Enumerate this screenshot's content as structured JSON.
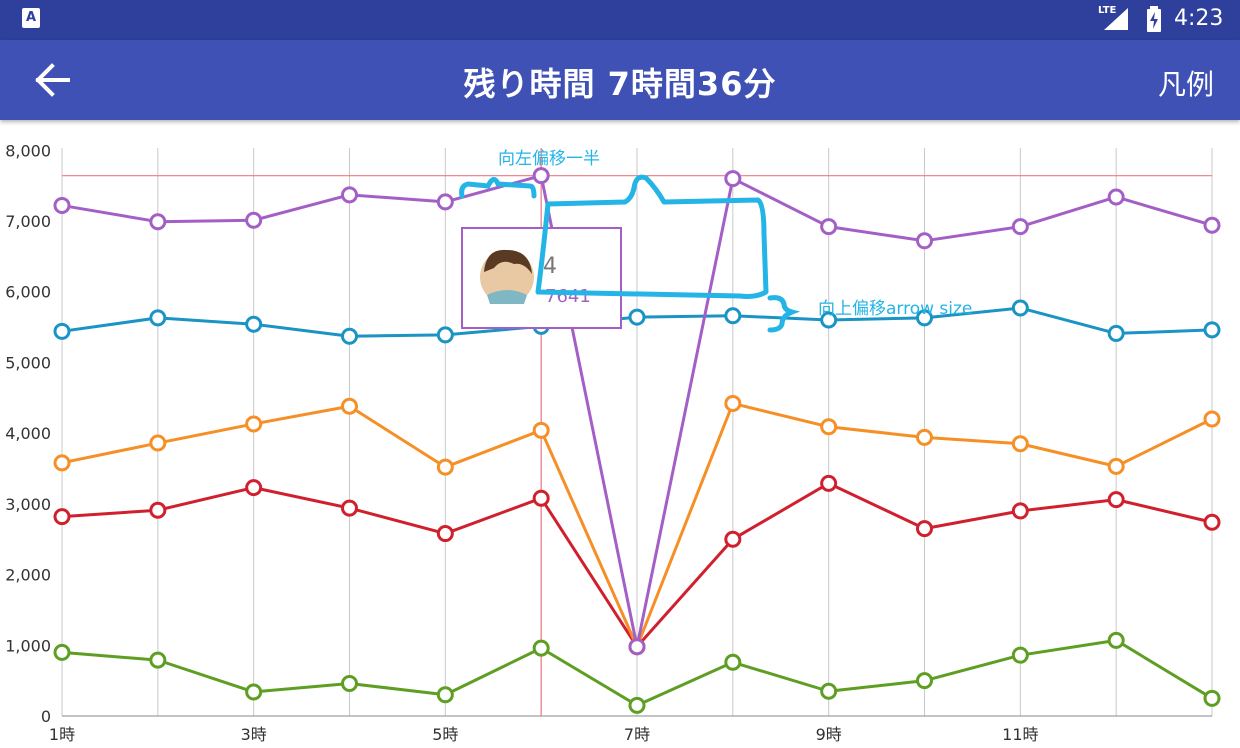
{
  "status_bar": {
    "time": "4:23",
    "network": "LTE",
    "app_icon": "A"
  },
  "app_bar": {
    "title": "残り時間 7時間36分",
    "legend_label": "凡例",
    "back_icon": "arrow-left-icon"
  },
  "colors": {
    "app_bar": "#3f51b5",
    "status_bar": "#2f3f9c",
    "highlight": "#f07a80",
    "annotation": "#24b4e6"
  },
  "chart_data": {
    "type": "line",
    "x": [
      1,
      2,
      3,
      4,
      5,
      6,
      7,
      8,
      9,
      10,
      11,
      12,
      13
    ],
    "x_tick_labels": [
      "1時",
      "",
      "3時",
      "",
      "5時",
      "",
      "7時",
      "",
      "9時",
      "",
      "11時",
      "",
      ""
    ],
    "y_tick_labels": [
      "0",
      "1,000",
      "2,000",
      "3,000",
      "4,000",
      "5,000",
      "6,000",
      "7,000",
      "8,000"
    ],
    "ylim": [
      0,
      8400
    ],
    "grid": "vertical",
    "series": [
      {
        "color": "#a35fc6",
        "values": [
          7220,
          6990,
          7010,
          7370,
          7270,
          7641,
          980,
          7600,
          6920,
          6720,
          6920,
          7340,
          6940
        ]
      },
      {
        "color": "#1a94c4",
        "values": [
          5440,
          5630,
          5540,
          5370,
          5390,
          5510,
          5640,
          5660,
          5600,
          5630,
          5770,
          5410,
          5460
        ]
      },
      {
        "color": "#f58f26",
        "values": [
          3580,
          3860,
          4130,
          4380,
          3520,
          4040,
          980,
          4420,
          4090,
          3940,
          3850,
          3530,
          4200
        ]
      },
      {
        "color": "#d0202e",
        "values": [
          2820,
          2910,
          3230,
          2940,
          2580,
          3080,
          980,
          2500,
          3290,
          2650,
          2900,
          3060,
          2740
        ]
      },
      {
        "color": "#5e9e22",
        "values": [
          900,
          790,
          340,
          460,
          300,
          960,
          150,
          760,
          350,
          500,
          860,
          1070,
          250
        ]
      }
    ],
    "highlight": {
      "x": 6,
      "y": 7641
    },
    "tooltip": {
      "index": "4",
      "value": "7641"
    },
    "annotations": [
      "向左偏移一半",
      "向上偏移arrow size"
    ]
  }
}
